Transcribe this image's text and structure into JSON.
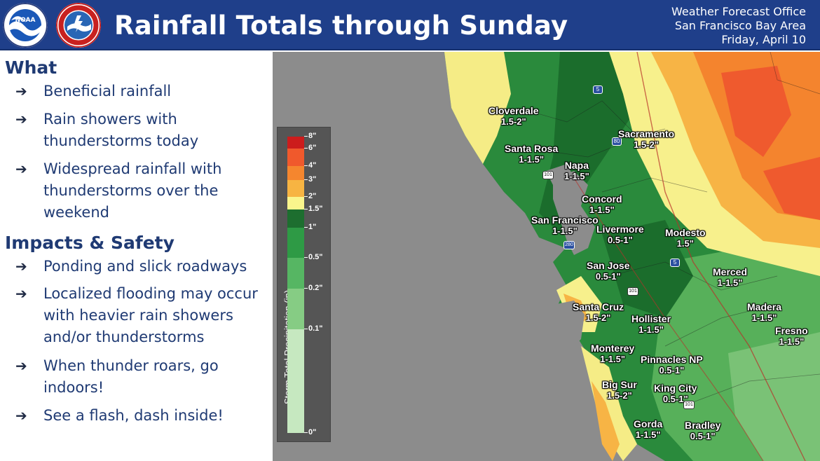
{
  "header": {
    "title": "Rainfall Totals through Sunday",
    "office": "Weather Forecast Office",
    "area": "San Francisco Bay Area",
    "date": "Friday, April 10",
    "logos": [
      "noaa-logo",
      "nws-logo"
    ],
    "background_color": "#1f3f8a"
  },
  "what": {
    "title": "What",
    "bullets": [
      "Beneficial rainfall",
      "Rain showers with thunderstorms today",
      "Widespread rainfall with thunderstorms over the weekend"
    ]
  },
  "impacts": {
    "title": "Impacts & Safety",
    "bullets": [
      "Ponding and slick roadways",
      "Localized flooding may occur with heavier rain showers and/or thunderstorms",
      "When thunder roars, go indoors!",
      "See a flash, dash inside!"
    ]
  },
  "legend": {
    "title": "Storm Total Precipitation (in)",
    "ticks": [
      "8\"",
      "6\"",
      "4\"",
      "3\"",
      "2\"",
      "1.5\"",
      "1\"",
      "0.5\"",
      "0.2\"",
      "0.1\"",
      "0\""
    ],
    "colors": [
      "#cc1c1c",
      "#f0592c",
      "#f5862e",
      "#f7b442",
      "#faf58c",
      "#1d6e2f",
      "#2e9a45",
      "#56b663",
      "#86cc84",
      "#c6e8c0"
    ]
  },
  "cities": [
    {
      "name": "Cloverdale",
      "value": "1.5-2\""
    },
    {
      "name": "Santa Rosa",
      "value": "1-1.5\""
    },
    {
      "name": "Napa",
      "value": "1-1.5\""
    },
    {
      "name": "Sacramento",
      "value": "1.5-2\""
    },
    {
      "name": "Concord",
      "value": "1-1.5\""
    },
    {
      "name": "San Francisco",
      "value": "1-1.5\""
    },
    {
      "name": "Livermore",
      "value": "0.5-1\""
    },
    {
      "name": "Modesto",
      "value": "1.5\""
    },
    {
      "name": "San Jose",
      "value": "0.5-1\""
    },
    {
      "name": "Merced",
      "value": "1-1.5\""
    },
    {
      "name": "Santa Cruz",
      "value": "1.5-2\""
    },
    {
      "name": "Madera",
      "value": "1-1.5\""
    },
    {
      "name": "Hollister",
      "value": "1-1.5\""
    },
    {
      "name": "Fresno",
      "value": "1-1.5\""
    },
    {
      "name": "Monterey",
      "value": "1-1.5\""
    },
    {
      "name": "Pinnacles NP",
      "value": "0.5-1\""
    },
    {
      "name": "Big Sur",
      "value": "1.5-2\""
    },
    {
      "name": "King City",
      "value": "0.5-1\""
    },
    {
      "name": "Gorda",
      "value": "1-1.5\""
    },
    {
      "name": "Bradley",
      "value": "0.5-1\""
    }
  ],
  "highways": [
    "5",
    "80",
    "101",
    "280",
    "5",
    "101",
    "101"
  ]
}
